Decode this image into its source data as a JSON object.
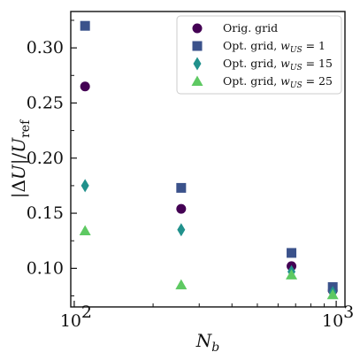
{
  "chart_data": {
    "type": "scatter",
    "x_scale": "log",
    "xlabel": "N_b",
    "ylabel": "|ΔU|/U_ref",
    "xlim": [
      97,
      1080
    ],
    "ylim": [
      0.065,
      0.333
    ],
    "x_ticks": [
      {
        "value": 100,
        "label": "10",
        "exp": "2"
      },
      {
        "value": 1000,
        "label": "10",
        "exp": "3"
      }
    ],
    "y_ticks": [
      {
        "value": 0.1,
        "label": "0.10"
      },
      {
        "value": 0.15,
        "label": "0.15"
      },
      {
        "value": 0.2,
        "label": "0.20"
      },
      {
        "value": 0.25,
        "label": "0.25"
      },
      {
        "value": 0.3,
        "label": "0.30"
      }
    ],
    "legend_position": "top-right",
    "series": [
      {
        "name": "Orig. grid",
        "sub": "",
        "eq": "",
        "marker": "circle",
        "color": "#440154",
        "x": [
          110,
          256,
          675,
          970
        ],
        "y": [
          0.265,
          0.154,
          0.102,
          0.08
        ]
      },
      {
        "name": "Opt. grid, ",
        "sub": "US",
        "eq": " = 1",
        "marker": "square",
        "color": "#3b528b",
        "x": [
          110,
          256,
          675,
          970
        ],
        "y": [
          0.32,
          0.173,
          0.114,
          0.083
        ]
      },
      {
        "name": "Opt. grid, ",
        "sub": "US",
        "eq": " = 15",
        "marker": "diamond",
        "color": "#21918c",
        "x": [
          110,
          256,
          675,
          970
        ],
        "y": [
          0.175,
          0.135,
          0.097,
          0.078
        ]
      },
      {
        "name": "Opt. grid, ",
        "sub": "US",
        "eq": " = 25",
        "marker": "triangle",
        "color": "#5ec962",
        "x": [
          110,
          256,
          675,
          970
        ],
        "y": [
          0.134,
          0.085,
          0.094,
          0.076
        ]
      }
    ]
  }
}
